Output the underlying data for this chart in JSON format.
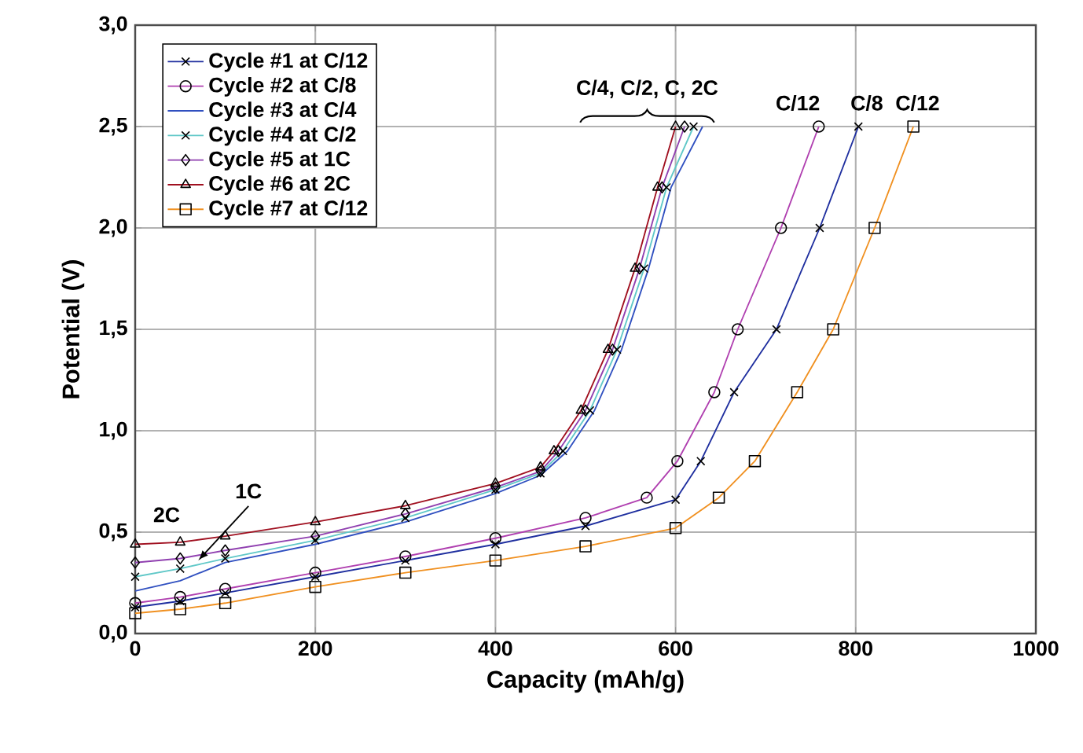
{
  "chart_data": {
    "type": "line",
    "xlabel": "Capacity (mAh/g)",
    "ylabel": "Potential (V)",
    "xlim": [
      0,
      1000
    ],
    "xticks": [
      0,
      200,
      400,
      600,
      800,
      1000
    ],
    "ylim": [
      0,
      3
    ],
    "yticks": [
      {
        "value": 0,
        "label": "0,0"
      },
      {
        "value": 0.5,
        "label": "0,5"
      },
      {
        "value": 1,
        "label": "1,0"
      },
      {
        "value": 1.5,
        "label": "1,5"
      },
      {
        "value": 2,
        "label": "2,0"
      },
      {
        "value": 2.5,
        "label": "2,5"
      },
      {
        "value": 3,
        "label": "3,0"
      }
    ],
    "grid": true,
    "legend": "top left",
    "line_style": "solid",
    "series": [
      {
        "name": "Cycle #1 at C/12",
        "color": "#1f2f9f",
        "marker": "cross",
        "x": [
          0,
          50,
          100,
          200,
          300,
          400,
          500,
          600,
          628,
          665,
          712,
          760,
          803
        ],
        "values": [
          0.13,
          0.16,
          0.2,
          0.28,
          0.36,
          0.44,
          0.53,
          0.66,
          0.85,
          1.19,
          1.5,
          2.0,
          2.5
        ]
      },
      {
        "name": "Cycle #2 at C/8",
        "color": "#b040b0",
        "marker": "circle",
        "x": [
          0,
          50,
          100,
          200,
          300,
          400,
          500,
          568,
          602,
          643,
          669,
          717,
          759
        ],
        "values": [
          0.15,
          0.18,
          0.22,
          0.3,
          0.38,
          0.47,
          0.57,
          0.67,
          0.85,
          1.19,
          1.5,
          2.0,
          2.5
        ]
      },
      {
        "name": "Cycle #3 at C/4",
        "color": "#3050c0",
        "x": [
          0,
          50,
          100,
          200,
          300,
          400,
          450,
          480,
          510,
          540,
          570,
          595,
          630
        ],
        "values": [
          0.21,
          0.26,
          0.35,
          0.44,
          0.55,
          0.69,
          0.78,
          0.9,
          1.1,
          1.4,
          1.8,
          2.2,
          2.5
        ]
      },
      {
        "name": "Cycle #4 at C/2",
        "color": "#60c8c8",
        "marker": "cross",
        "x": [
          0,
          50,
          100,
          200,
          300,
          400,
          450,
          475,
          505,
          535,
          565,
          590,
          620
        ],
        "values": [
          0.28,
          0.32,
          0.37,
          0.46,
          0.57,
          0.71,
          0.79,
          0.9,
          1.1,
          1.4,
          1.8,
          2.2,
          2.5
        ]
      },
      {
        "name": "Cycle #5 at 1C",
        "color": "#9040b0",
        "marker": "diamond",
        "x": [
          0,
          50,
          100,
          200,
          300,
          400,
          450,
          470,
          500,
          530,
          560,
          585,
          610
        ],
        "values": [
          0.35,
          0.37,
          0.41,
          0.48,
          0.59,
          0.72,
          0.8,
          0.9,
          1.1,
          1.4,
          1.8,
          2.2,
          2.5
        ]
      },
      {
        "name": "Cycle #6 at 2C",
        "color": "#a01020",
        "marker": "triangle",
        "x": [
          0,
          50,
          100,
          200,
          300,
          400,
          450,
          465,
          495,
          525,
          555,
          580,
          600
        ],
        "values": [
          0.44,
          0.45,
          0.48,
          0.55,
          0.63,
          0.74,
          0.82,
          0.9,
          1.1,
          1.4,
          1.8,
          2.2,
          2.5
        ]
      },
      {
        "name": "Cycle #7 at C/12",
        "color": "#f09020",
        "marker": "square",
        "x": [
          0,
          50,
          100,
          200,
          300,
          400,
          500,
          600,
          648,
          688,
          735,
          775,
          821,
          864
        ],
        "values": [
          0.1,
          0.12,
          0.15,
          0.23,
          0.3,
          0.36,
          0.43,
          0.52,
          0.67,
          0.85,
          1.19,
          1.5,
          2.0,
          2.5
        ]
      }
    ],
    "annotations": [
      {
        "text": "C/4, C/2, C, 2C",
        "x": 615,
        "y": 2.5
      },
      {
        "text": "C/12",
        "x": 759,
        "y": 2.5
      },
      {
        "text": "C/8",
        "x": 803,
        "y": 2.5
      },
      {
        "text": "C/12",
        "x": 864,
        "y": 2.5
      },
      {
        "text": "2C",
        "x": 0,
        "y": 0.44
      },
      {
        "text": "1C",
        "x": 70,
        "y": 0.36
      }
    ]
  }
}
